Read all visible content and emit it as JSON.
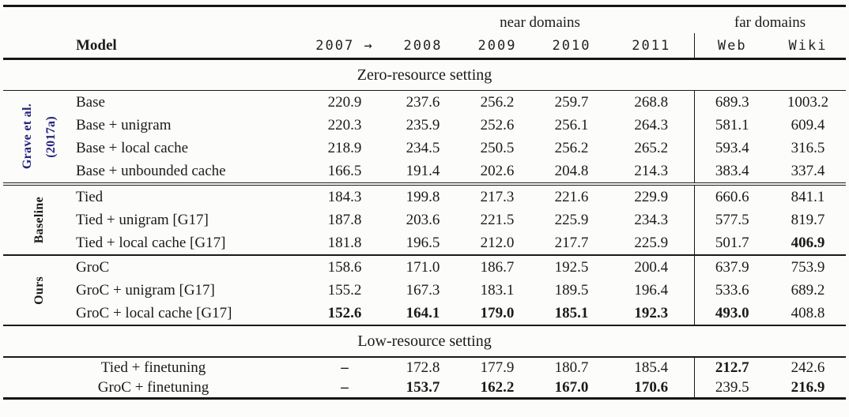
{
  "colors": {
    "background": "#fcfcfa",
    "text": "#1a1a1a",
    "rule": "#161616",
    "group_label_blue": "#23237e"
  },
  "header": {
    "near_domains": "near domains",
    "far_domains": "far domains",
    "model": "Model",
    "years": [
      "2007 →",
      "2008",
      "2009",
      "2010",
      "2011"
    ],
    "domains": [
      "Web",
      "Wiki"
    ]
  },
  "table": {
    "zero_resource": {
      "title": "Zero-resource setting",
      "groups": [
        {
          "label_lines": [
            "Grave et al.",
            "(2017a)"
          ],
          "label_color": "blue",
          "end_rule": "double",
          "rows": [
            {
              "model": "Base",
              "values": [
                "220.9",
                "237.6",
                "256.2",
                "259.7",
                "268.8",
                "689.3",
                "1003.2"
              ],
              "bold": [
                0,
                0,
                0,
                0,
                0,
                0,
                0
              ]
            },
            {
              "model": "Base + unigram",
              "values": [
                "220.3",
                "235.9",
                "252.6",
                "256.1",
                "264.3",
                "581.1",
                "609.4"
              ],
              "bold": [
                0,
                0,
                0,
                0,
                0,
                0,
                0
              ]
            },
            {
              "model": "Base + local cache",
              "values": [
                "218.9",
                "234.5",
                "250.5",
                "256.2",
                "265.2",
                "593.4",
                "316.5"
              ],
              "bold": [
                0,
                0,
                0,
                0,
                0,
                0,
                0
              ]
            },
            {
              "model": "Base + unbounded cache",
              "values": [
                "166.5",
                "191.4",
                "202.6",
                "204.8",
                "214.3",
                "383.4",
                "337.4"
              ],
              "bold": [
                0,
                0,
                0,
                0,
                0,
                0,
                0
              ]
            }
          ]
        },
        {
          "label_lines": [
            "Baseline"
          ],
          "label_color": "black",
          "end_rule": "single",
          "rows": [
            {
              "model": "Tied",
              "values": [
                "184.3",
                "199.8",
                "217.3",
                "221.6",
                "229.9",
                "660.6",
                "841.1"
              ],
              "bold": [
                0,
                0,
                0,
                0,
                0,
                0,
                0
              ]
            },
            {
              "model": "Tied + unigram [G17]",
              "values": [
                "187.8",
                "203.6",
                "221.5",
                "225.9",
                "234.3",
                "577.5",
                "819.7"
              ],
              "bold": [
                0,
                0,
                0,
                0,
                0,
                0,
                0
              ]
            },
            {
              "model": "Tied + local cache [G17]",
              "values": [
                "181.8",
                "196.5",
                "212.0",
                "217.7",
                "225.9",
                "501.7",
                "406.9"
              ],
              "bold": [
                0,
                0,
                0,
                0,
                0,
                0,
                1
              ]
            }
          ]
        },
        {
          "label_lines": [
            "Ours"
          ],
          "label_color": "black",
          "end_rule": "single",
          "rows": [
            {
              "model": "GroC",
              "values": [
                "158.6",
                "171.0",
                "186.7",
                "192.5",
                "200.4",
                "637.9",
                "753.9"
              ],
              "bold": [
                0,
                0,
                0,
                0,
                0,
                0,
                0
              ]
            },
            {
              "model": "GroC + unigram [G17]",
              "values": [
                "155.2",
                "167.3",
                "183.1",
                "189.5",
                "196.4",
                "533.6",
                "689.2"
              ],
              "bold": [
                0,
                0,
                0,
                0,
                0,
                0,
                0
              ]
            },
            {
              "model": "GroC + local cache [G17]",
              "values": [
                "152.6",
                "164.1",
                "179.0",
                "185.1",
                "192.3",
                "493.0",
                "408.8"
              ],
              "bold": [
                1,
                1,
                1,
                1,
                1,
                1,
                0
              ]
            }
          ]
        }
      ]
    },
    "low_resource": {
      "title": "Low-resource setting",
      "rows": [
        {
          "model": "Tied + finetuning",
          "values": [
            "–",
            "172.8",
            "177.9",
            "180.7",
            "185.4",
            "212.7",
            "242.6"
          ],
          "bold": [
            1,
            0,
            0,
            0,
            0,
            1,
            0
          ]
        },
        {
          "model": "GroC + finetuning",
          "values": [
            "–",
            "153.7",
            "162.2",
            "167.0",
            "170.6",
            "239.5",
            "216.9"
          ],
          "bold": [
            1,
            1,
            1,
            1,
            1,
            0,
            1
          ]
        }
      ]
    }
  }
}
